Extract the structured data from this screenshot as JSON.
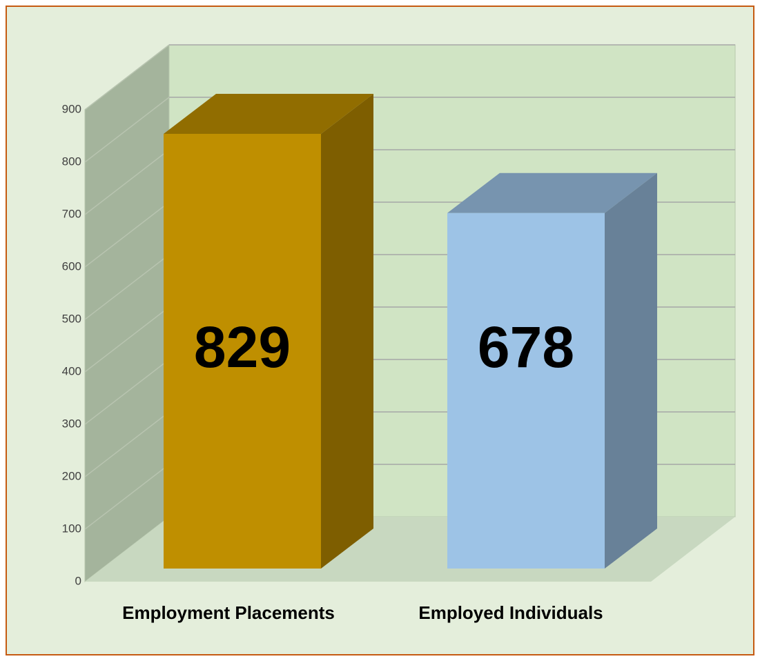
{
  "chart_data": {
    "type": "bar3d",
    "categories": [
      "Employment Placements",
      "Employed Individuals"
    ],
    "values": [
      829,
      678
    ],
    "colors": [
      "#bf8f00",
      "#9dc3e6"
    ],
    "ylim": [
      0,
      900
    ],
    "yticks": [
      0,
      100,
      200,
      300,
      400,
      500,
      600,
      700,
      800,
      900
    ],
    "grid": true
  }
}
